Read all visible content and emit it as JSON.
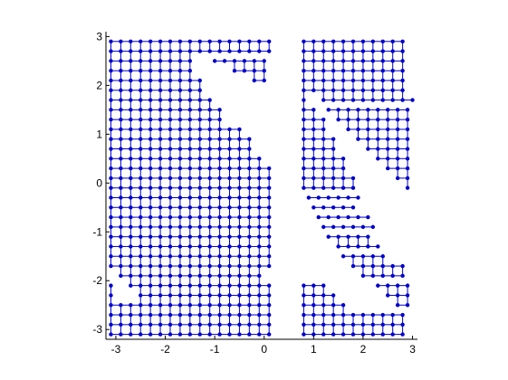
{
  "chart_data": {
    "type": "scatter",
    "title": "",
    "xlabel": "",
    "ylabel": "",
    "xlim": [
      -3.2,
      3.1
    ],
    "ylim": [
      -3.2,
      3.1
    ],
    "xticks": [
      -3,
      -2,
      -1,
      0,
      1,
      2,
      3
    ],
    "yticks": [
      -3,
      -2,
      -1,
      0,
      1,
      2,
      3
    ],
    "xtick_labels": [
      "-3",
      "-2",
      "-1",
      "0",
      "1",
      "2",
      "3"
    ],
    "ytick_labels": [
      "-3",
      "-2",
      "-1",
      "0",
      "1",
      "2",
      "3"
    ],
    "grid": false,
    "legend": "none",
    "marker_color": "#0000cc",
    "series": [
      {
        "values_note": "",
        "grid_step": 0.2,
        "rows": [
          {
            "y": 2.9,
            "segments": [
              [
                -3.1,
                0.0
              ],
              [
                0.8,
                2.9
              ]
            ]
          },
          {
            "y": 2.7,
            "segments": [
              [
                -3.1,
                0.0
              ],
              [
                0.8,
                2.9
              ]
            ]
          },
          {
            "y": 2.5,
            "segments": [
              [
                -3.1,
                -1.5
              ],
              [
                -1.0,
                0.0
              ],
              [
                0.8,
                2.9
              ]
            ]
          },
          {
            "y": 2.3,
            "segments": [
              [
                -3.1,
                -1.6
              ],
              [
                -0.6,
                0.0
              ],
              [
                0.8,
                2.9
              ]
            ]
          },
          {
            "y": 2.1,
            "segments": [
              [
                -3.1,
                -1.4
              ],
              [
                -0.2,
                0.0
              ],
              [
                0.8,
                2.9
              ]
            ]
          },
          {
            "y": 1.9,
            "segments": [
              [
                -3.1,
                -1.3
              ],
              [
                0.8,
                0.8
              ],
              [
                1.0,
                2.9
              ]
            ]
          },
          {
            "y": 1.7,
            "segments": [
              [
                -3.1,
                -1.1
              ],
              [
                0.8,
                0.8
              ],
              [
                1.2,
                2.9
              ]
            ]
          },
          {
            "y": 1.5,
            "segments": [
              [
                -3.1,
                -0.9
              ],
              [
                0.8,
                1.0
              ],
              [
                1.3,
                2.9
              ]
            ]
          },
          {
            "y": 1.3,
            "segments": [
              [
                -3.1,
                -0.8
              ],
              [
                0.8,
                1.1
              ],
              [
                1.5,
                2.9
              ]
            ]
          },
          {
            "y": 1.1,
            "segments": [
              [
                -3.1,
                -0.6
              ],
              [
                0.8,
                1.2
              ],
              [
                1.7,
                2.9
              ]
            ]
          },
          {
            "y": 0.9,
            "segments": [
              [
                -3.1,
                -0.4
              ],
              [
                0.8,
                1.4
              ],
              [
                1.9,
                2.9
              ]
            ]
          },
          {
            "y": 0.7,
            "segments": [
              [
                -3.1,
                -0.3
              ],
              [
                0.8,
                1.5
              ],
              [
                2.1,
                2.9
              ]
            ]
          },
          {
            "y": 0.5,
            "segments": [
              [
                -3.1,
                -0.1
              ],
              [
                0.8,
                1.6
              ],
              [
                2.3,
                2.9
              ]
            ]
          },
          {
            "y": 0.3,
            "segments": [
              [
                -3.1,
                0.0
              ],
              [
                0.8,
                1.7
              ],
              [
                2.5,
                2.9
              ]
            ]
          },
          {
            "y": 0.1,
            "segments": [
              [
                -3.1,
                0.0
              ],
              [
                0.8,
                1.8
              ],
              [
                2.7,
                2.9
              ]
            ]
          },
          {
            "y": -0.1,
            "segments": [
              [
                -3.1,
                0.0
              ],
              [
                0.8,
                1.9
              ],
              [
                2.9,
                2.9
              ]
            ]
          },
          {
            "y": -0.3,
            "segments": [
              [
                -3.1,
                0.0
              ],
              [
                0.9,
                1.9
              ]
            ]
          },
          {
            "y": -0.5,
            "segments": [
              [
                -3.1,
                0.0
              ],
              [
                1.0,
                1.9
              ]
            ]
          },
          {
            "y": -0.7,
            "segments": [
              [
                -3.1,
                0.0
              ],
              [
                1.1,
                2.1
              ]
            ]
          },
          {
            "y": -0.9,
            "segments": [
              [
                -3.1,
                0.0
              ],
              [
                1.2,
                2.1
              ]
            ]
          },
          {
            "y": -1.1,
            "segments": [
              [
                -3.1,
                0.0
              ],
              [
                1.3,
                2.1
              ]
            ]
          },
          {
            "y": -1.3,
            "segments": [
              [
                -3.1,
                0.0
              ],
              [
                1.5,
                2.3
              ]
            ]
          },
          {
            "y": -1.5,
            "segments": [
              [
                -3.1,
                0.0
              ],
              [
                1.6,
                2.5
              ]
            ]
          },
          {
            "y": -1.7,
            "segments": [
              [
                -3.1,
                0.0
              ],
              [
                1.8,
                2.7
              ]
            ]
          },
          {
            "y": -1.9,
            "segments": [
              [
                -2.9,
                0.0
              ],
              [
                2.0,
                2.9
              ]
            ]
          },
          {
            "y": -2.1,
            "segments": [
              [
                -3.1,
                -3.1
              ],
              [
                -2.7,
                0.0
              ],
              [
                0.8,
                1.1
              ],
              [
                2.3,
                2.9
              ]
            ]
          },
          {
            "y": -2.3,
            "segments": [
              [
                -3.1,
                -3.1
              ],
              [
                -2.5,
                0.0
              ],
              [
                0.8,
                1.3
              ],
              [
                2.5,
                2.9
              ]
            ]
          },
          {
            "y": -2.5,
            "segments": [
              [
                -3.1,
                0.0
              ],
              [
                0.8,
                1.7
              ],
              [
                2.7,
                2.9
              ]
            ]
          },
          {
            "y": -2.7,
            "segments": [
              [
                -3.1,
                0.0
              ],
              [
                0.8,
                2.9
              ]
            ]
          },
          {
            "y": -2.9,
            "segments": [
              [
                -3.1,
                0.0
              ],
              [
                0.8,
                2.9
              ]
            ]
          },
          {
            "y": -3.1,
            "segments": [
              [
                -3.1,
                0.0
              ],
              [
                0.8,
                2.9
              ]
            ]
          }
        ]
      }
    ]
  }
}
